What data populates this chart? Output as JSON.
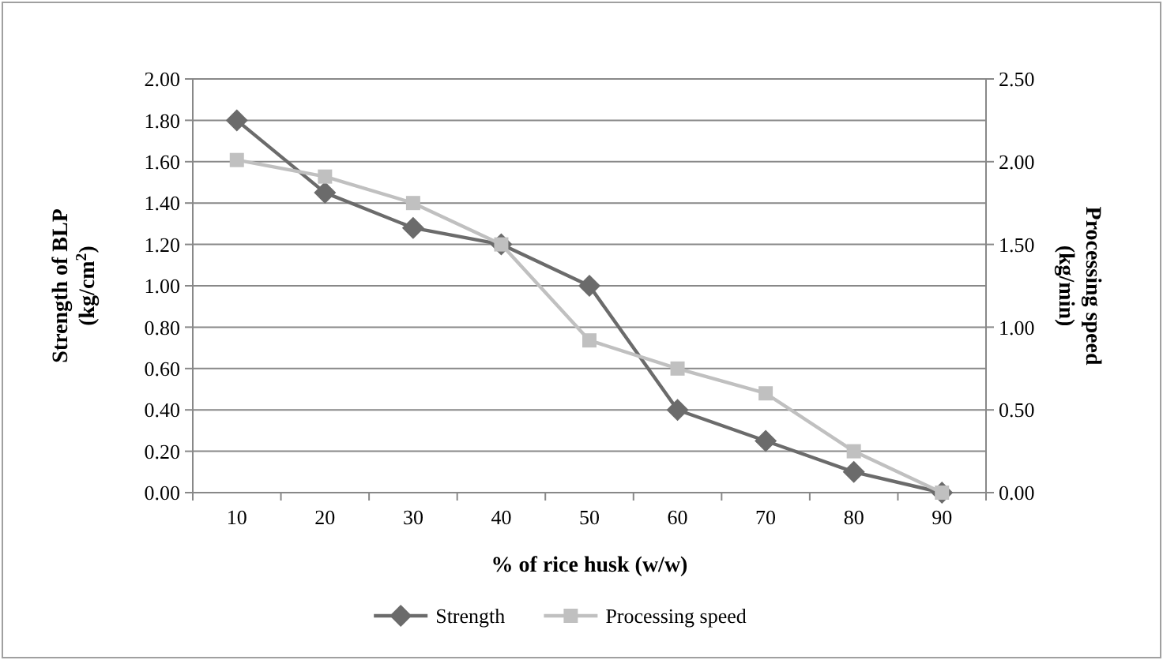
{
  "chart_data": {
    "type": "line",
    "xlabel": "% of rice husk (w/w)",
    "ylabel": "Strength of BLP (kg/cm$^{2}$)",
    "y2label": "Processing speed (kg/min)",
    "categories": [
      "10",
      "20",
      "30",
      "40",
      "50",
      "60",
      "70",
      "80",
      "90"
    ],
    "series": [
      {
        "name": "Strength",
        "color": "#6b6b6b",
        "marker": "diamond",
        "values": [
          1.8,
          1.45,
          1.28,
          1.2,
          1.0,
          0.4,
          0.25,
          0.1,
          0.0
        ]
      },
      {
        "name": "Processing speed",
        "color": "#c0c0c0",
        "marker": "square",
        "axis": "y2",
        "values": [
          2.01,
          1.91,
          1.75,
          1.5,
          0.92,
          0.75,
          0.6,
          0.25,
          0.0
        ]
      }
    ],
    "ylim": [
      0,
      2
    ],
    "yticks": [
      {
        "value": 0,
        "label": "0.00"
      },
      {
        "value": 0.2,
        "label": "0.20"
      },
      {
        "value": 0.4,
        "label": "0.40"
      },
      {
        "value": 0.6,
        "label": "0.60"
      },
      {
        "value": 0.8,
        "label": "0.80"
      },
      {
        "value": 1,
        "label": "1.00"
      },
      {
        "value": 1.2,
        "label": "1.20"
      },
      {
        "value": 1.4,
        "label": "1.40"
      },
      {
        "value": 1.6,
        "label": "1.60"
      },
      {
        "value": 1.8,
        "label": "1.80"
      },
      {
        "value": 2,
        "label": "2.00"
      }
    ],
    "y2lim": [
      0,
      2.5
    ],
    "y2ticks": [
      {
        "value": 0,
        "label": "0.00"
      },
      {
        "value": 0.5,
        "label": "0.50"
      },
      {
        "value": 1,
        "label": "1.00"
      },
      {
        "value": 1.5,
        "label": "1.50"
      },
      {
        "value": 2,
        "label": "2.00"
      },
      {
        "value": 2.5,
        "label": "2.50"
      }
    ],
    "grid": "y",
    "legend": "bottom"
  }
}
